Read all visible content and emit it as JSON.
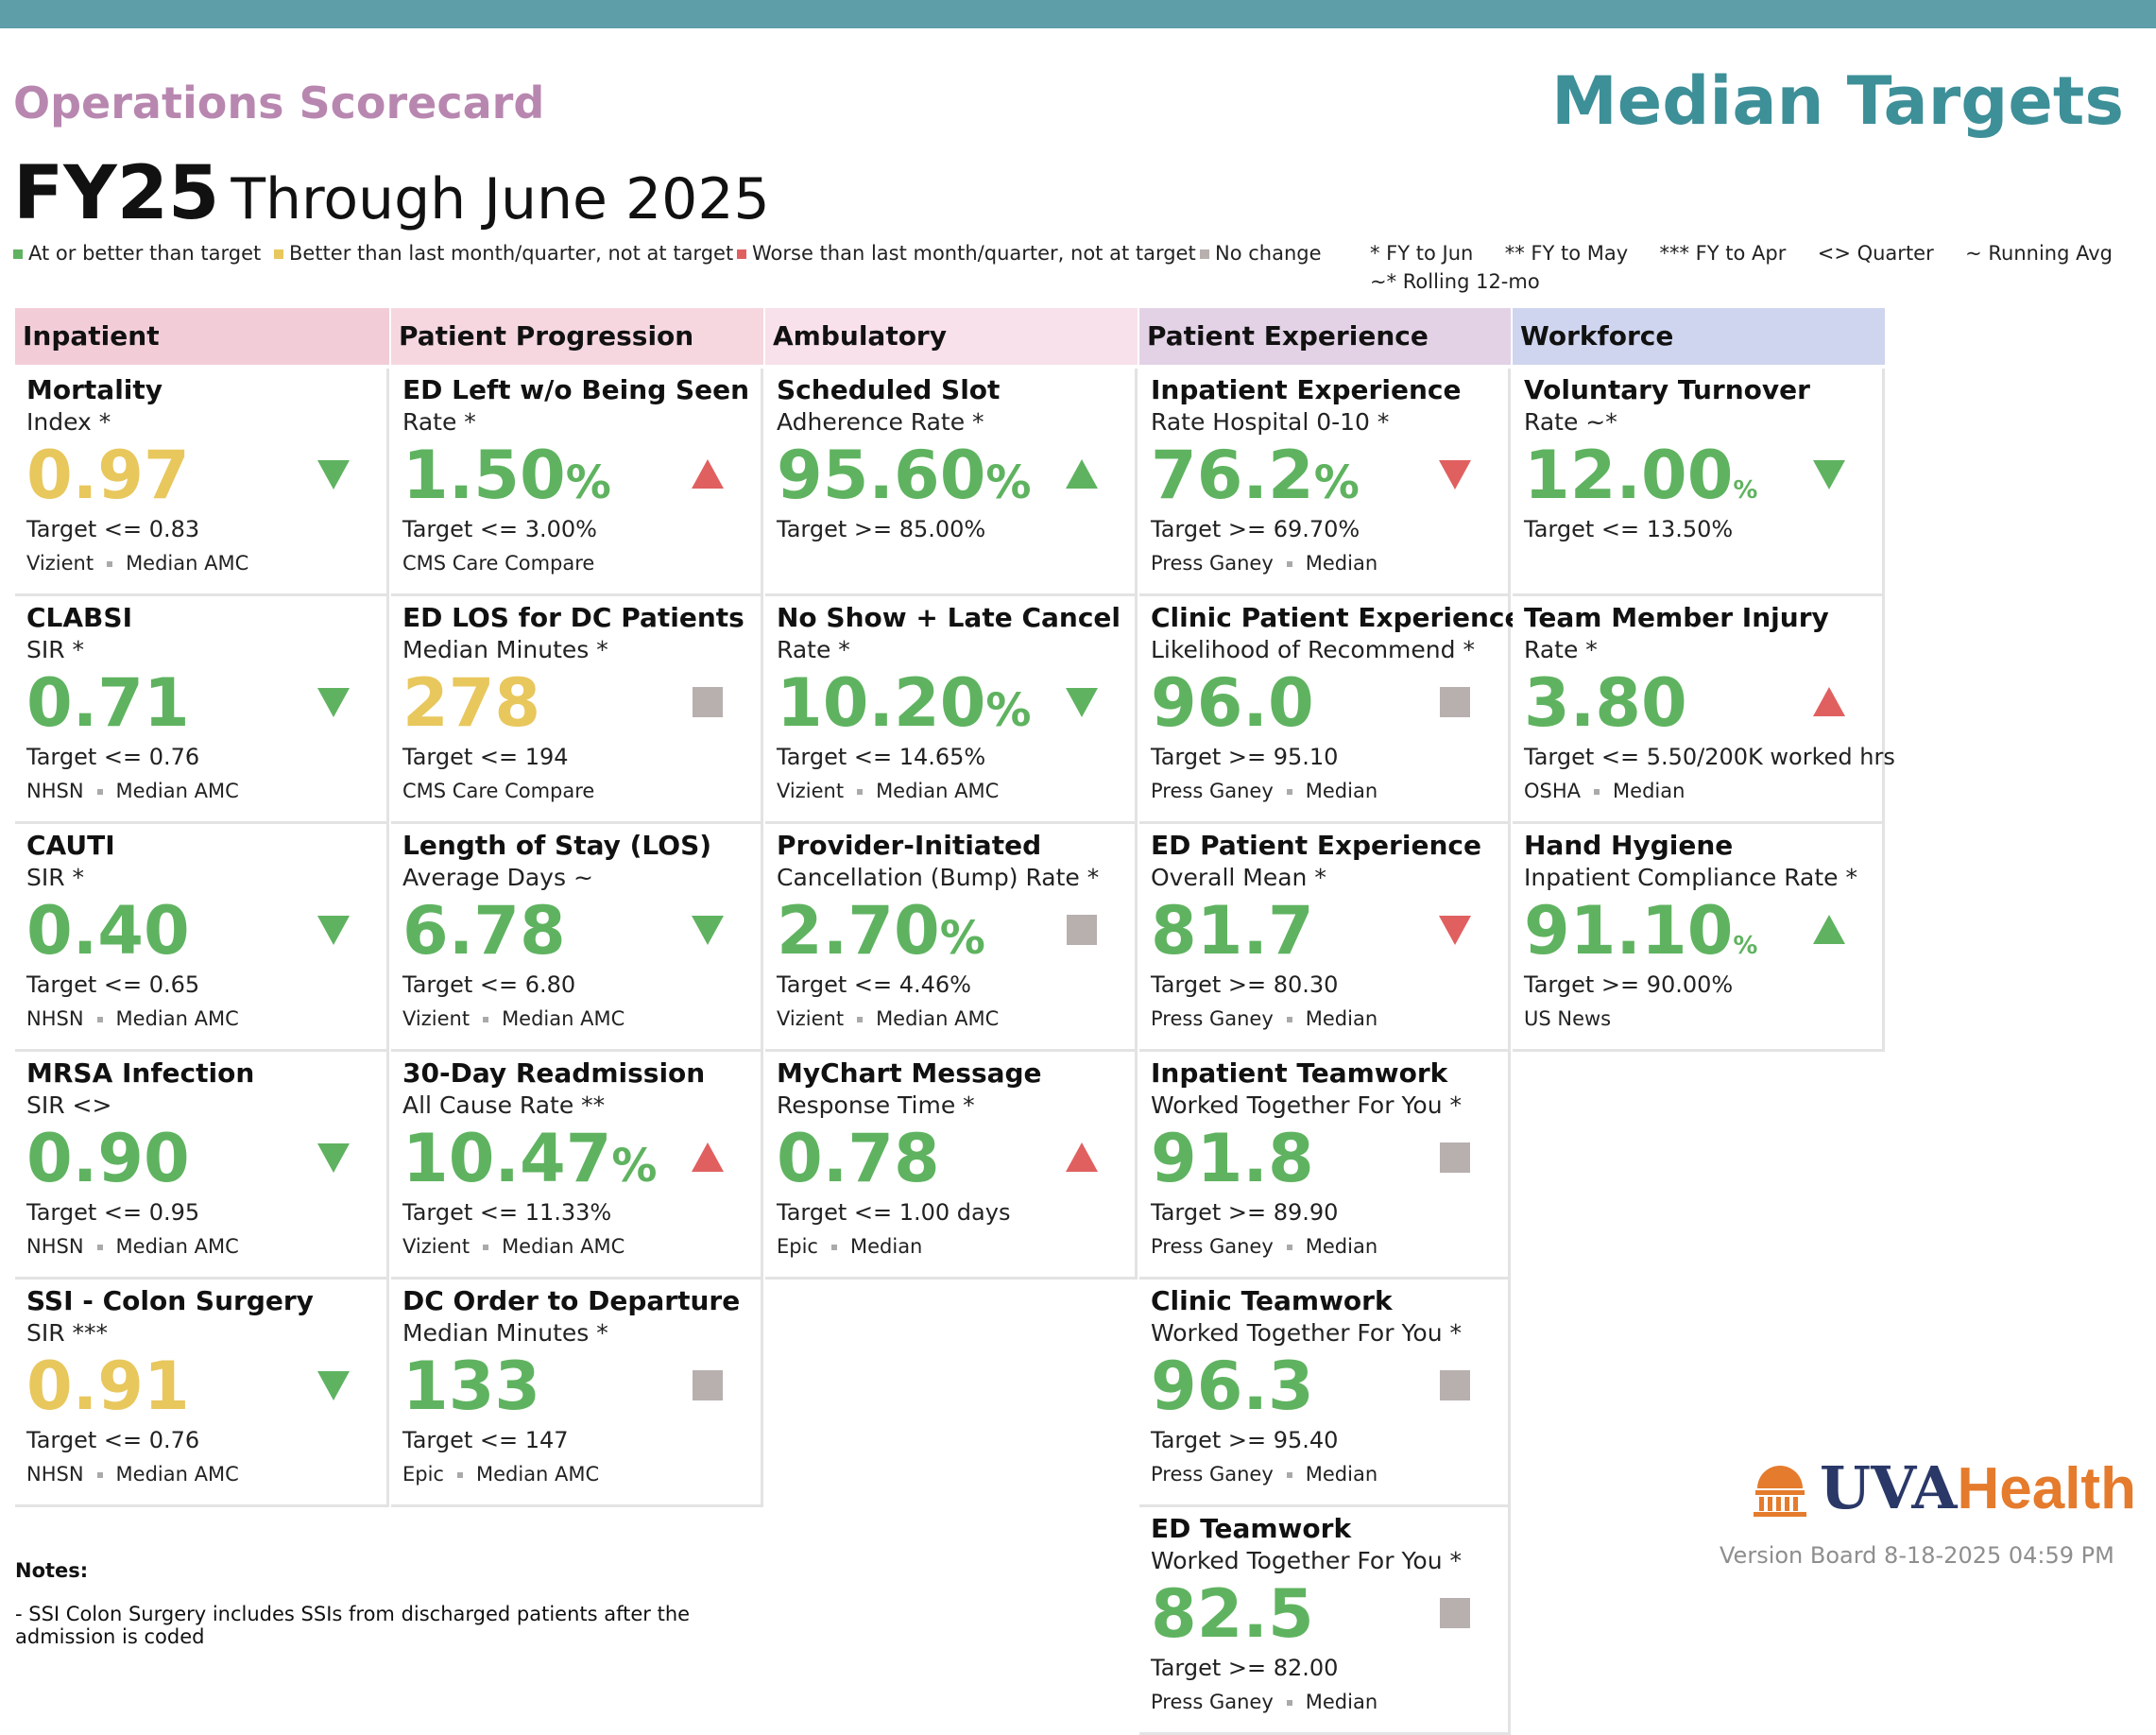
{
  "header": {
    "ops_title": "Operations Scorecard",
    "median_title": "Median Targets",
    "fy_label": "FY25",
    "through_label": "Through June 2025"
  },
  "legend": {
    "items": [
      {
        "label": "At or better than target",
        "color": "#5fb360"
      },
      {
        "label": "Better than last month/quarter, not at target",
        "color": "#e8c75d"
      },
      {
        "label": "Worse than last month/quarter, not at target",
        "color": "#e06060"
      },
      {
        "label": "No change",
        "color": "#b7b0ae"
      }
    ],
    "keys_line1": "* FY to Jun     ** FY to May     *** FY to Apr     <> Quarter     ~ Running Avg",
    "keys_line2": "~* Rolling 12-mo"
  },
  "categories": [
    {
      "label": "Inpatient",
      "color": "#f2cdd8"
    },
    {
      "label": "Patient Progression",
      "color": "#f6d7e0"
    },
    {
      "label": "Ambulatory",
      "color": "#f8e1ea"
    },
    {
      "label": "Patient Experience",
      "color": "#e3d2e6"
    },
    {
      "label": "Workforce",
      "color": "#cfd5ee"
    }
  ],
  "columns": [
    [
      {
        "title": "Mortality",
        "sub": "Index *",
        "value": "0.97",
        "unit": "",
        "value_color": "yellow",
        "target": "Target <= 0.83",
        "source": "Vizient",
        "source2": "Median AMC",
        "status": "down-green"
      },
      {
        "title": "CLABSI",
        "sub": "SIR *",
        "value": "0.71",
        "unit": "",
        "value_color": "green",
        "target": "Target <= 0.76",
        "source": "NHSN",
        "source2": "Median AMC",
        "status": "down-green"
      },
      {
        "title": "CAUTI",
        "sub": "SIR *",
        "value": "0.40",
        "unit": "",
        "value_color": "green",
        "target": "Target <= 0.65",
        "source": "NHSN",
        "source2": "Median AMC",
        "status": "down-green"
      },
      {
        "title": "MRSA Infection",
        "sub": "SIR <>",
        "value": "0.90",
        "unit": "",
        "value_color": "green",
        "target": "Target <= 0.95",
        "source": "NHSN",
        "source2": "Median AMC",
        "status": "down-green"
      },
      {
        "title": "SSI - Colon Surgery",
        "sub": "SIR ***",
        "value": "0.91",
        "unit": "",
        "value_color": "yellow",
        "target": "Target <= 0.76",
        "source": "NHSN",
        "source2": "Median AMC",
        "status": "down-green"
      }
    ],
    [
      {
        "title": "ED Left w/o Being Seen",
        "sub": "Rate *",
        "value": "1.50",
        "unit": "%",
        "value_color": "green",
        "target": "Target <= 3.00%",
        "source": "CMS Care Compare",
        "source2": "",
        "status": "up-red"
      },
      {
        "title": "ED LOS for DC Patients",
        "sub": "Median Minutes *",
        "value": "278",
        "unit": "",
        "value_color": "yellow",
        "target": "Target <= 194",
        "source": "CMS Care Compare",
        "source2": "",
        "status": "square-gray"
      },
      {
        "title": "Length of Stay (LOS)",
        "sub": "Average Days ~",
        "value": "6.78",
        "unit": "",
        "value_color": "green",
        "target": "Target <= 6.80",
        "source": "Vizient",
        "source2": "Median AMC",
        "status": "down-green"
      },
      {
        "title": "30-Day Readmission",
        "sub": "All Cause Rate **",
        "value": "10.47",
        "unit": "%",
        "value_color": "green",
        "target": "Target <= 11.33%",
        "source": "Vizient",
        "source2": "Median AMC",
        "status": "up-red"
      },
      {
        "title": "DC Order to Departure",
        "sub": "Median Minutes *",
        "value": "133",
        "unit": "",
        "value_color": "green",
        "target": "Target <= 147",
        "source": "Epic",
        "source2": "Median AMC",
        "status": "square-gray"
      }
    ],
    [
      {
        "title": "Scheduled Slot",
        "sub": "Adherence Rate *",
        "value": "95.60",
        "unit": "%",
        "value_color": "green",
        "target": "Target >= 85.00%",
        "source": "",
        "source2": "",
        "status": "up-green"
      },
      {
        "title": "No Show + Late Cancel",
        "sub": "Rate *",
        "value": "10.20",
        "unit": "%",
        "value_color": "green",
        "target": "Target <= 14.65%",
        "source": "Vizient",
        "source2": "Median AMC",
        "status": "down-green"
      },
      {
        "title": "Provider-Initiated",
        "sub": "Cancellation (Bump) Rate *",
        "value": "2.70",
        "unit": "%",
        "value_color": "green",
        "target": "Target <= 4.46%",
        "source": "Vizient",
        "source2": "Median AMC",
        "status": "square-gray"
      },
      {
        "title": "MyChart Message",
        "sub": "Response Time *",
        "value": "0.78",
        "unit": "",
        "value_color": "green",
        "target": "Target <= 1.00 days",
        "source": "Epic",
        "source2": "Median",
        "status": "up-red"
      }
    ],
    [
      {
        "title": "Inpatient Experience",
        "sub": "Rate Hospital 0-10 *",
        "value": "76.2",
        "unit": "%",
        "value_color": "green",
        "target": "Target >= 69.70%",
        "source": "Press Ganey",
        "source2": "Median",
        "status": "down-red"
      },
      {
        "title": "Clinic Patient Experience",
        "sub": "Likelihood of Recommend *",
        "value": "96.0",
        "unit": "",
        "value_color": "green",
        "target": "Target >= 95.10",
        "source": "Press Ganey",
        "source2": "Median",
        "status": "square-gray"
      },
      {
        "title": "ED Patient Experience",
        "sub": "Overall Mean *",
        "value": "81.7",
        "unit": "",
        "value_color": "green",
        "target": "Target >= 80.30",
        "source": "Press Ganey",
        "source2": "Median",
        "status": "down-red"
      },
      {
        "title": "Inpatient Teamwork",
        "sub": "Worked Together For You *",
        "value": "91.8",
        "unit": "",
        "value_color": "green",
        "target": "Target >= 89.90",
        "source": "Press Ganey",
        "source2": "Median",
        "status": "square-gray"
      },
      {
        "title": "Clinic Teamwork",
        "sub": "Worked Together For You *",
        "value": "96.3",
        "unit": "",
        "value_color": "green",
        "target": "Target >= 95.40",
        "source": "Press Ganey",
        "source2": "Median",
        "status": "square-gray"
      },
      {
        "title": "ED Teamwork",
        "sub": "Worked Together For You *",
        "value": "82.5",
        "unit": "",
        "value_color": "green",
        "target": "Target >= 82.00",
        "source": "Press Ganey",
        "source2": "Median",
        "status": "square-gray"
      }
    ],
    [
      {
        "title": "Voluntary Turnover",
        "sub": "Rate ~*",
        "value": "12.00",
        "unit": "%",
        "unit_small": true,
        "value_color": "green",
        "target": "Target <= 13.50%",
        "source": "",
        "source2": "",
        "status": "down-green"
      },
      {
        "title": "Team Member Injury",
        "sub": "Rate *",
        "value": "3.80",
        "unit": "",
        "value_color": "green",
        "target": "Target <= 5.50/200K worked hrs",
        "source": "OSHA",
        "source2": "Median",
        "status": "up-red"
      },
      {
        "title": "Hand Hygiene",
        "sub": "Inpatient Compliance Rate *",
        "value": "91.10",
        "unit": "%",
        "unit_small": true,
        "value_color": "green",
        "target": "Target >= 90.00%",
        "source": "US News",
        "source2": "",
        "status": "up-green"
      }
    ]
  ],
  "notes": {
    "head": "Notes:",
    "line1": "- SSI Colon Surgery includes SSIs from discharged patients after the",
    "line2": "admission is coded"
  },
  "logo": {
    "uva": "UVA",
    "health": "Health"
  },
  "version": "Version Board 8-18-2025 04:59 PM"
}
